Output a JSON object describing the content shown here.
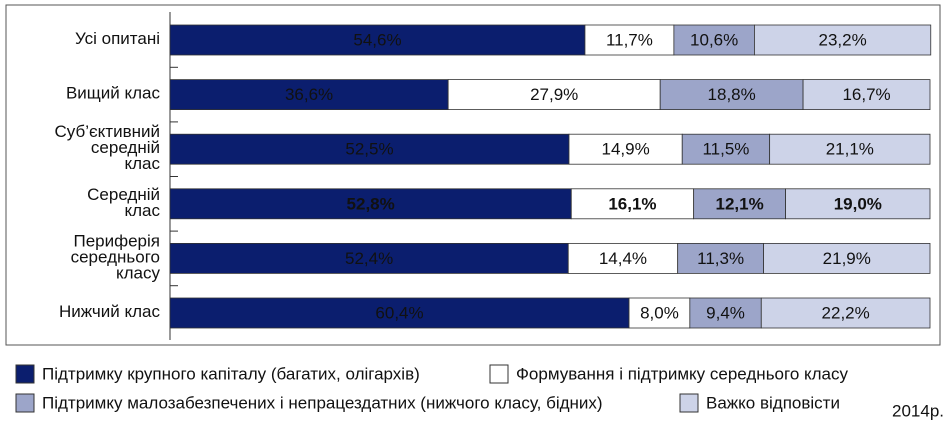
{
  "chart_data": {
    "type": "stacked-barh",
    "categories": [
      "Усі опитані",
      "Вищий клас",
      "Суб’єктивний\nсередній\nклас",
      "Середній\nклас",
      "Периферія\nсереднього\nкласу",
      "Нижчий клас"
    ],
    "xlim": [
      0,
      100
    ],
    "highlight": 3,
    "highlight_color": "#1a2f86",
    "series": [
      {
        "name": "Підтримку крупного капіталу (багатих, олігархів)",
        "color": "#0b1e6e",
        "label_color": "#ffffff",
        "values": [
          54.6,
          36.6,
          52.5,
          52.8,
          52.4,
          60.4
        ],
        "value_labels": [
          "54,6%",
          "36,6%",
          "52,5%",
          "52,8%",
          "52,4%",
          "60,4%"
        ]
      },
      {
        "name": "Формування і підтримку середнього класу",
        "color": "#ffffff",
        "label_color": "#111111",
        "values": [
          11.7,
          27.9,
          14.9,
          16.1,
          14.4,
          8.0
        ],
        "value_labels": [
          "11,7%",
          "27,9%",
          "14,9%",
          "16,1%",
          "14,4%",
          "8,0%"
        ]
      },
      {
        "name": "Підтримку малозабезпечених і непрацездатних (нижчого класу, бідних)",
        "color": "#9ca5c9",
        "label_color": "#111111",
        "values": [
          10.6,
          18.8,
          11.5,
          12.1,
          11.3,
          9.4
        ],
        "value_labels": [
          "10,6%",
          "18,8%",
          "11,5%",
          "12,1%",
          "11,3%",
          "9,4%"
        ]
      },
      {
        "name": "Важко відповісти",
        "color": "#cdd3e8",
        "label_color": "#111111",
        "values": [
          23.2,
          16.7,
          21.1,
          19.0,
          21.9,
          22.2
        ],
        "value_labels": [
          "23,2%",
          "16,7%",
          "21,1%",
          "19,0%",
          "21,9%",
          "22,2%"
        ]
      }
    ],
    "note": "2014р."
  }
}
